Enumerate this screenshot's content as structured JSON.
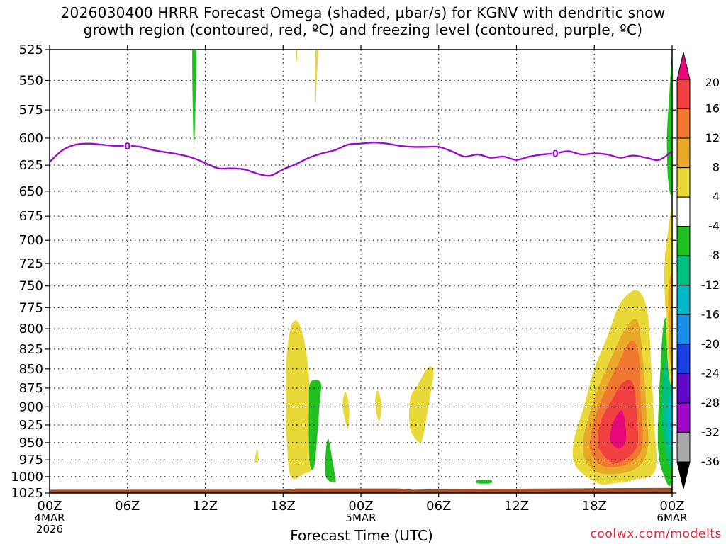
{
  "title": {
    "line1": "2026030400 HRRR Forecast Omega (shaded, μbar/s) for KGNV with dendritic snow",
    "line2": "growth region (contoured, red, ºC) and freezing level (contoured, purple, ºC)"
  },
  "credit": "coolwx.com/modelts",
  "chart_data": {
    "type": "heatmap",
    "xlabel": "Forecast Time (UTC)",
    "ylabel": "",
    "x_ticks": [
      {
        "hour": 0,
        "label": "00Z",
        "date": "4MAR",
        "year": "2026"
      },
      {
        "hour": 6,
        "label": "06Z"
      },
      {
        "hour": 12,
        "label": "12Z"
      },
      {
        "hour": 18,
        "label": "18Z"
      },
      {
        "hour": 24,
        "label": "00Z",
        "date": "5MAR"
      },
      {
        "hour": 30,
        "label": "06Z"
      },
      {
        "hour": 36,
        "label": "12Z"
      },
      {
        "hour": 42,
        "label": "18Z"
      },
      {
        "hour": 48,
        "label": "00Z",
        "date": "6MAR"
      }
    ],
    "xlim_hours": [
      0,
      48
    ],
    "y_ticks": [
      525,
      550,
      575,
      600,
      625,
      650,
      675,
      700,
      725,
      750,
      775,
      800,
      825,
      850,
      875,
      900,
      925,
      950,
      975,
      1000,
      1025
    ],
    "ylim_hpa": [
      1025,
      525
    ],
    "y_scale": "log-pressure",
    "grid": true,
    "colorbar": {
      "labels": [
        20,
        16,
        12,
        8,
        4,
        -4,
        -8,
        -12,
        -16,
        -20,
        -24,
        -28,
        -32,
        -36
      ],
      "colors": [
        "#e8087c",
        "#f04040",
        "#f07830",
        "#e8a828",
        "#e8d838",
        "#ffffff",
        "#20c020",
        "#00c080",
        "#00b8c8",
        "#1890e8",
        "#1840e0",
        "#6008c8",
        "#a008c8",
        "#a8a8a8",
        "#000000"
      ]
    },
    "freezing_level": {
      "label": "0",
      "points": [
        [
          0,
          622
        ],
        [
          1,
          611
        ],
        [
          2,
          606
        ],
        [
          3,
          605
        ],
        [
          4,
          606
        ],
        [
          5,
          607
        ],
        [
          6,
          607
        ],
        [
          7,
          608
        ],
        [
          8,
          611
        ],
        [
          9,
          613
        ],
        [
          10,
          615
        ],
        [
          11,
          618
        ],
        [
          12,
          623
        ],
        [
          13,
          628
        ],
        [
          14,
          628
        ],
        [
          15,
          629
        ],
        [
          16,
          633
        ],
        [
          17,
          635
        ],
        [
          18,
          629
        ],
        [
          19,
          624
        ],
        [
          20,
          618
        ],
        [
          21,
          614
        ],
        [
          22,
          611
        ],
        [
          23,
          606
        ],
        [
          24,
          605
        ],
        [
          25,
          604
        ],
        [
          26,
          605
        ],
        [
          27,
          607
        ],
        [
          28,
          608
        ],
        [
          29,
          608
        ],
        [
          30,
          608
        ],
        [
          31,
          612
        ],
        [
          32,
          617
        ],
        [
          33,
          615
        ],
        [
          34,
          618
        ],
        [
          35,
          617
        ],
        [
          36,
          620
        ],
        [
          37,
          617
        ],
        [
          38,
          615
        ],
        [
          39,
          614
        ],
        [
          40,
          612
        ],
        [
          41,
          615
        ],
        [
          42,
          614
        ],
        [
          43,
          615
        ],
        [
          44,
          618
        ],
        [
          45,
          616
        ],
        [
          46,
          618
        ],
        [
          47,
          620
        ],
        [
          48,
          612
        ]
      ],
      "label_positions": [
        [
          6,
          607
        ],
        [
          39,
          614
        ]
      ]
    },
    "terrain": {
      "color": "#a0522d",
      "points": [
        [
          0,
          1020
        ],
        [
          18,
          1020
        ],
        [
          19,
          1018
        ],
        [
          27,
          1018
        ],
        [
          28,
          1020
        ],
        [
          30,
          1019
        ],
        [
          48,
          1017
        ]
      ]
    },
    "omega_regions": [
      {
        "color": "#e8d838",
        "points": [
          [
            18.6,
            1000
          ],
          [
            18.3,
            950
          ],
          [
            18.2,
            880
          ],
          [
            18.3,
            830
          ],
          [
            18.6,
            798
          ],
          [
            19.0,
            790
          ],
          [
            19.4,
            800
          ],
          [
            19.8,
            830
          ],
          [
            20.1,
            880
          ],
          [
            20.3,
            940
          ],
          [
            20.3,
            985
          ],
          [
            19.6,
            996
          ]
        ]
      },
      {
        "color": "#20c020",
        "points": [
          [
            20.1,
            985
          ],
          [
            20.0,
            950
          ],
          [
            20.0,
            900
          ],
          [
            20.1,
            868
          ],
          [
            20.9,
            868
          ],
          [
            20.8,
            900
          ],
          [
            20.6,
            950
          ],
          [
            20.4,
            985
          ]
        ]
      },
      {
        "color": "#20c020",
        "points": [
          [
            21.3,
            962
          ],
          [
            21.5,
            945
          ],
          [
            21.8,
            975
          ],
          [
            22.0,
            998
          ],
          [
            22.0,
            1008
          ],
          [
            21.3,
            1000
          ]
        ]
      },
      {
        "color": "#e8d838",
        "points": [
          [
            23.0,
            930
          ],
          [
            22.6,
            900
          ],
          [
            22.8,
            880
          ],
          [
            23.1,
            900
          ]
        ]
      },
      {
        "color": "#e8d838",
        "points": [
          [
            25.4,
            920
          ],
          [
            25.1,
            895
          ],
          [
            25.3,
            878
          ],
          [
            25.6,
            898
          ]
        ]
      },
      {
        "color": "#e8d838",
        "points": [
          [
            28.5,
            950
          ],
          [
            27.8,
            930
          ],
          [
            27.8,
            890
          ],
          [
            28.4,
            870
          ],
          [
            29.2,
            848
          ],
          [
            29.6,
            855
          ],
          [
            29.2,
            900
          ],
          [
            28.8,
            940
          ]
        ]
      },
      {
        "color": "#e8d838",
        "points": [
          [
            15.8,
            978
          ],
          [
            16.0,
            960
          ],
          [
            16.1,
            975
          ]
        ]
      },
      {
        "color": "#e8d838",
        "points": [
          [
            20.5,
            525
          ],
          [
            20.7,
            525
          ],
          [
            20.6,
            550
          ],
          [
            20.5,
            570
          ]
        ]
      },
      {
        "color": "#e8d838",
        "points": [
          [
            19.0,
            525
          ],
          [
            19.1,
            525
          ],
          [
            19.05,
            535
          ]
        ]
      },
      {
        "color": "#20c020",
        "points": [
          [
            11.0,
            525
          ],
          [
            11.3,
            525
          ],
          [
            11.2,
            590
          ],
          [
            11.1,
            605
          ]
        ]
      },
      {
        "color": "#20c020",
        "points": [
          [
            33.0,
            1005
          ],
          [
            34.0,
            1005
          ],
          [
            34.0,
            1010
          ],
          [
            33.0,
            1010
          ]
        ]
      },
      {
        "color": "#e8d838",
        "points": [
          [
            42.3,
            1010
          ],
          [
            40.6,
            985
          ],
          [
            40.4,
            950
          ],
          [
            41.2,
            900
          ],
          [
            42.0,
            850
          ],
          [
            43.0,
            810
          ],
          [
            44.0,
            770
          ],
          [
            45.3,
            755
          ],
          [
            46.1,
            780
          ],
          [
            46.4,
            850
          ],
          [
            46.6,
            920
          ],
          [
            46.7,
            990
          ],
          [
            45.0,
            1005
          ],
          [
            43.5,
            1010
          ]
        ]
      },
      {
        "color": "#e8a828",
        "points": [
          [
            42.5,
            995
          ],
          [
            41.3,
            975
          ],
          [
            41.2,
            940
          ],
          [
            42.2,
            880
          ],
          [
            43.2,
            840
          ],
          [
            44.4,
            800
          ],
          [
            45.3,
            790
          ],
          [
            45.7,
            830
          ],
          [
            46.0,
            900
          ],
          [
            46.1,
            960
          ],
          [
            45.0,
            990
          ]
        ]
      },
      {
        "color": "#f07830",
        "points": [
          [
            42.8,
            985
          ],
          [
            41.7,
            962
          ],
          [
            41.9,
            925
          ],
          [
            42.8,
            880
          ],
          [
            43.8,
            845
          ],
          [
            44.8,
            815
          ],
          [
            45.4,
            830
          ],
          [
            45.6,
            900
          ],
          [
            45.7,
            955
          ],
          [
            44.7,
            980
          ]
        ]
      },
      {
        "color": "#f04040",
        "points": [
          [
            43.3,
            978
          ],
          [
            42.3,
            955
          ],
          [
            42.5,
            920
          ],
          [
            43.4,
            890
          ],
          [
            44.2,
            868
          ],
          [
            45.0,
            870
          ],
          [
            45.3,
            920
          ],
          [
            45.3,
            955
          ],
          [
            44.3,
            975
          ]
        ]
      },
      {
        "color": "#e8087c",
        "points": [
          [
            43.8,
            958
          ],
          [
            43.2,
            945
          ],
          [
            43.5,
            920
          ],
          [
            44.1,
            905
          ],
          [
            44.4,
            925
          ],
          [
            44.4,
            950
          ]
        ]
      },
      {
        "color": "#20c020",
        "points": [
          [
            47.3,
            995
          ],
          [
            46.9,
            950
          ],
          [
            47.1,
            850
          ],
          [
            47.4,
            790
          ],
          [
            47.9,
            800
          ],
          [
            48,
            830
          ],
          [
            48,
            1000
          ]
        ]
      },
      {
        "color": "#00c080",
        "points": [
          [
            47.6,
            970
          ],
          [
            47.2,
            920
          ],
          [
            47.3,
            860
          ],
          [
            47.6,
            835
          ],
          [
            48,
            840
          ],
          [
            48,
            975
          ]
        ]
      },
      {
        "color": "#00b8c8",
        "points": [
          [
            47.8,
            950
          ],
          [
            47.6,
            910
          ],
          [
            48,
            885
          ],
          [
            48,
            955
          ]
        ]
      },
      {
        "color": "#e8d838",
        "points": [
          [
            47.7,
            850
          ],
          [
            47.5,
            780
          ],
          [
            47.4,
            730
          ],
          [
            47.7,
            690
          ],
          [
            48,
            680
          ],
          [
            48,
            855
          ]
        ]
      },
      {
        "color": "#e8a828",
        "points": [
          [
            47.8,
            830
          ],
          [
            47.7,
            760
          ],
          [
            48,
            740
          ],
          [
            48,
            835
          ]
        ]
      },
      {
        "color": "#20c020",
        "points": [
          [
            47.7,
            640
          ],
          [
            47.6,
            600
          ],
          [
            47.8,
            560
          ],
          [
            48,
            535
          ],
          [
            48,
            645
          ]
        ]
      }
    ]
  }
}
